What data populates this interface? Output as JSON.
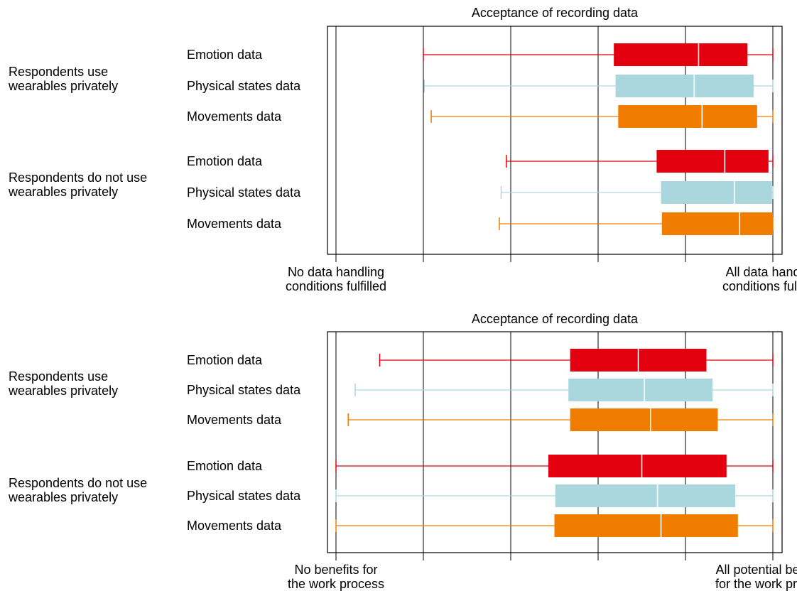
{
  "chart_data": [
    {
      "type": "boxplot",
      "title": "Acceptance of recording data",
      "x_range": [
        0,
        5
      ],
      "x_ticks": [
        0,
        1,
        2,
        3,
        4,
        5
      ],
      "x_axis_labels": {
        "left": [
          "No data handling",
          "conditions fulfilled"
        ],
        "right": [
          "All data handling",
          "conditions fulfilled"
        ]
      },
      "gridlines": true,
      "groups": [
        {
          "label": [
            "Respondents use",
            "wearables privately"
          ],
          "items": [
            {
              "name": "Emotion data",
              "color": "#e3000f",
              "min": 1.0,
              "q1": 3.18,
              "median": 4.15,
              "q3": 4.71,
              "max": 5.0
            },
            {
              "name": "Physical states data",
              "color": "#aad7de",
              "min": 1.01,
              "q1": 3.2,
              "median": 4.1,
              "q3": 4.78,
              "max": 5.0
            },
            {
              "name": "Movements data",
              "color": "#f07d00",
              "min": 1.09,
              "q1": 3.23,
              "median": 4.19,
              "q3": 4.82,
              "max": 5.0
            }
          ]
        },
        {
          "label": [
            "Respondents do not use",
            "wearables privately"
          ],
          "items": [
            {
              "name": "Emotion data",
              "color": "#e3000f",
              "min": 1.95,
              "q1": 3.67,
              "median": 4.45,
              "q3": 4.95,
              "max": 5.0
            },
            {
              "name": "Physical states data",
              "color": "#aad7de",
              "min": 1.89,
              "q1": 3.72,
              "median": 4.56,
              "q3": 4.99,
              "max": 5.0
            },
            {
              "name": "Movements data",
              "color": "#f07d00",
              "min": 1.87,
              "q1": 3.73,
              "median": 4.62,
              "q3": 5.0,
              "max": 5.0
            }
          ]
        }
      ]
    },
    {
      "type": "boxplot",
      "title": "Acceptance of recording data",
      "x_range": [
        0,
        5
      ],
      "x_ticks": [
        0,
        1,
        2,
        3,
        4,
        5
      ],
      "x_axis_labels": {
        "left": [
          "No benefits for",
          "the work process"
        ],
        "right": [
          "All potential  benefits",
          "for the work process"
        ]
      },
      "gridlines": true,
      "groups": [
        {
          "label": [
            "Respondents use",
            "wearables privately"
          ],
          "items": [
            {
              "name": "Emotion data",
              "color": "#e3000f",
              "min": 0.5,
              "q1": 2.68,
              "median": 3.46,
              "q3": 4.24,
              "max": 5.0
            },
            {
              "name": "Physical states data",
              "color": "#aad7de",
              "min": 0.22,
              "q1": 2.66,
              "median": 3.53,
              "q3": 4.31,
              "max": 5.0
            },
            {
              "name": "Movements data",
              "color": "#f07d00",
              "min": 0.14,
              "q1": 2.68,
              "median": 3.6,
              "q3": 4.37,
              "max": 5.0
            }
          ]
        },
        {
          "label": [
            "Respondents do not use",
            "wearables privately"
          ],
          "items": [
            {
              "name": "Emotion data",
              "color": "#e3000f",
              "min": 0.0,
              "q1": 2.43,
              "median": 3.5,
              "q3": 4.47,
              "max": 5.0
            },
            {
              "name": "Physical states data",
              "color": "#aad7de",
              "min": 0.0,
              "q1": 2.51,
              "median": 3.68,
              "q3": 4.57,
              "max": 5.0
            },
            {
              "name": "Movements data",
              "color": "#f07d00",
              "min": 0.0,
              "q1": 2.5,
              "median": 3.72,
              "q3": 4.6,
              "max": 5.0
            }
          ]
        }
      ]
    }
  ]
}
